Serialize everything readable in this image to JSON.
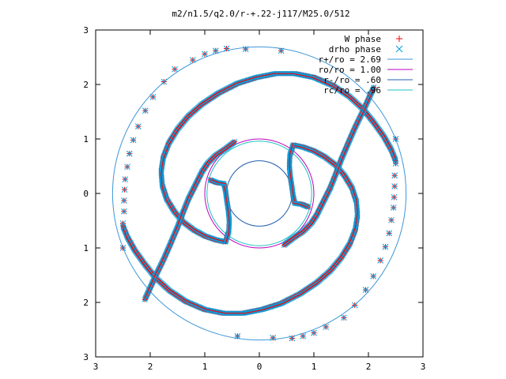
{
  "chart_data": {
    "type": "scatter",
    "title": "m2/n1.5/q2.0/r-+.22-j117/M25.0/512",
    "xlim": [
      -3,
      3
    ],
    "ylim": [
      -3,
      3
    ],
    "x_tick_labels": [
      "3",
      "2",
      "1",
      "0",
      "1",
      "2",
      "3"
    ],
    "y_tick_labels": [
      "3",
      "2",
      "1",
      "0",
      "1",
      "2",
      "3"
    ],
    "x_ticks": [
      -3,
      -2,
      -1,
      0,
      1,
      2,
      3
    ],
    "y_ticks": [
      3,
      2,
      1,
      0,
      -1,
      -2,
      -3
    ],
    "grid": false,
    "legend_position": "top-right",
    "series": [
      {
        "name": "W phase",
        "kind": "marker",
        "marker": "plus",
        "color": "#ff0000"
      },
      {
        "name": "drho phase",
        "kind": "marker",
        "marker": "cross",
        "color": "#00a0e0"
      },
      {
        "name": "r+/ro = 2.69",
        "kind": "circle",
        "radius": 2.69,
        "color": "#3d96d8"
      },
      {
        "name": "ro/ro = 1.00",
        "kind": "circle",
        "radius": 1.0,
        "color": "#c000c0"
      },
      {
        "name": "r-/ro = .60",
        "kind": "circle",
        "radius": 0.6,
        "color": "#2060b0"
      },
      {
        "name": "rc/ro = .96",
        "kind": "circle",
        "radius": 0.96,
        "color": "#20c0c0"
      }
    ],
    "spiral_arms": [
      {
        "points": [
          [
            0.62,
            0.89
          ],
          [
            0.8,
            0.85
          ],
          [
            1.0,
            0.78
          ],
          [
            1.2,
            0.67
          ],
          [
            1.4,
            0.52
          ],
          [
            1.56,
            0.33
          ],
          [
            1.7,
            0.1
          ],
          [
            1.78,
            -0.15
          ],
          [
            1.8,
            -0.4
          ],
          [
            1.76,
            -0.66
          ],
          [
            1.66,
            -0.92
          ],
          [
            1.5,
            -1.18
          ],
          [
            1.3,
            -1.42
          ],
          [
            1.05,
            -1.64
          ],
          [
            0.75,
            -1.84
          ],
          [
            0.4,
            -2.02
          ],
          [
            0.05,
            -2.13
          ],
          [
            -0.3,
            -2.2
          ],
          [
            -0.65,
            -2.2
          ],
          [
            -1.0,
            -2.13
          ],
          [
            -1.35,
            -1.98
          ],
          [
            -1.65,
            -1.78
          ],
          [
            -1.9,
            -1.55
          ],
          [
            -2.1,
            -1.3
          ],
          [
            -2.28,
            -1.05
          ],
          [
            -2.42,
            -0.8
          ],
          [
            -2.5,
            -0.6
          ]
        ]
      },
      {
        "points": [
          [
            -0.62,
            -0.89
          ],
          [
            -0.8,
            -0.85
          ],
          [
            -1.0,
            -0.78
          ],
          [
            -1.2,
            -0.67
          ],
          [
            -1.4,
            -0.52
          ],
          [
            -1.56,
            -0.33
          ],
          [
            -1.7,
            -0.1
          ],
          [
            -1.78,
            0.15
          ],
          [
            -1.8,
            0.4
          ],
          [
            -1.76,
            0.66
          ],
          [
            -1.66,
            0.92
          ],
          [
            -1.5,
            1.18
          ],
          [
            -1.3,
            1.42
          ],
          [
            -1.05,
            1.64
          ],
          [
            -0.75,
            1.84
          ],
          [
            -0.4,
            2.02
          ],
          [
            -0.05,
            2.13
          ],
          [
            0.3,
            2.2
          ],
          [
            0.65,
            2.2
          ],
          [
            1.0,
            2.13
          ],
          [
            1.35,
            1.98
          ],
          [
            1.65,
            1.78
          ],
          [
            1.9,
            1.55
          ],
          [
            2.1,
            1.3
          ],
          [
            2.28,
            1.05
          ],
          [
            2.42,
            0.8
          ],
          [
            2.5,
            0.6
          ]
        ]
      },
      {
        "points": [
          [
            0.45,
            -0.95
          ],
          [
            0.62,
            -0.82
          ],
          [
            0.8,
            -0.7
          ],
          [
            0.95,
            -0.55
          ],
          [
            1.05,
            -0.4
          ],
          [
            1.1,
            -0.3
          ],
          [
            1.2,
            -0.1
          ],
          [
            1.3,
            0.1
          ],
          [
            1.4,
            0.35
          ],
          [
            1.5,
            0.62
          ],
          [
            1.62,
            0.9
          ],
          [
            1.75,
            1.2
          ],
          [
            1.92,
            1.55
          ],
          [
            2.1,
            1.95
          ]
        ]
      },
      {
        "points": [
          [
            -0.45,
            0.95
          ],
          [
            -0.62,
            0.82
          ],
          [
            -0.8,
            0.7
          ],
          [
            -0.95,
            0.55
          ],
          [
            -1.05,
            0.4
          ],
          [
            -1.1,
            0.3
          ],
          [
            -1.2,
            0.1
          ],
          [
            -1.3,
            -0.1
          ],
          [
            -1.4,
            -0.35
          ],
          [
            -1.5,
            -0.62
          ],
          [
            -1.62,
            -0.9
          ],
          [
            -1.75,
            -1.2
          ],
          [
            -1.92,
            -1.55
          ],
          [
            -2.1,
            -1.95
          ]
        ]
      },
      {
        "points": [
          [
            0.62,
            0.89
          ],
          [
            0.56,
            0.7
          ],
          [
            0.55,
            0.5
          ],
          [
            0.57,
            0.3
          ],
          [
            0.6,
            0.1
          ],
          [
            0.62,
            -0.05
          ],
          [
            0.65,
            -0.18
          ],
          [
            0.78,
            -0.2
          ],
          [
            0.9,
            -0.25
          ]
        ]
      },
      {
        "points": [
          [
            -0.62,
            -0.89
          ],
          [
            -0.56,
            -0.7
          ],
          [
            -0.55,
            -0.5
          ],
          [
            -0.57,
            -0.3
          ],
          [
            -0.6,
            -0.1
          ],
          [
            -0.62,
            0.05
          ],
          [
            -0.65,
            0.18
          ],
          [
            -0.78,
            0.2
          ],
          [
            -0.9,
            0.25
          ]
        ]
      }
    ],
    "outer_sparse": [
      [
        -2.5,
        -1.0
      ],
      [
        -2.5,
        -0.55
      ],
      [
        -2.48,
        -0.33
      ],
      [
        -2.48,
        -0.13
      ],
      [
        -2.47,
        0.07
      ],
      [
        -2.46,
        0.26
      ],
      [
        -2.42,
        0.49
      ],
      [
        -2.38,
        0.73
      ],
      [
        -2.31,
        0.98
      ],
      [
        -2.22,
        1.23
      ],
      [
        -2.09,
        1.52
      ],
      [
        -1.95,
        1.77
      ],
      [
        -1.75,
        2.05
      ],
      [
        -1.55,
        2.28
      ],
      [
        -1.22,
        2.45
      ],
      [
        -1.0,
        2.56
      ],
      [
        -0.8,
        2.62
      ],
      [
        -0.6,
        2.66
      ],
      [
        -0.25,
        2.65
      ],
      [
        0.4,
        2.62
      ],
      [
        2.5,
        1.0
      ],
      [
        2.5,
        0.55
      ],
      [
        2.48,
        0.33
      ],
      [
        2.48,
        0.13
      ],
      [
        2.47,
        -0.07
      ],
      [
        2.46,
        -0.26
      ],
      [
        2.42,
        -0.49
      ],
      [
        2.38,
        -0.73
      ],
      [
        2.31,
        -0.98
      ],
      [
        2.22,
        -1.23
      ],
      [
        2.09,
        -1.52
      ],
      [
        1.95,
        -1.77
      ],
      [
        1.75,
        -2.05
      ],
      [
        1.55,
        -2.28
      ],
      [
        1.22,
        -2.45
      ],
      [
        1.0,
        -2.56
      ],
      [
        0.8,
        -2.62
      ],
      [
        0.6,
        -2.66
      ],
      [
        0.25,
        -2.65
      ],
      [
        -0.4,
        -2.62
      ]
    ]
  }
}
